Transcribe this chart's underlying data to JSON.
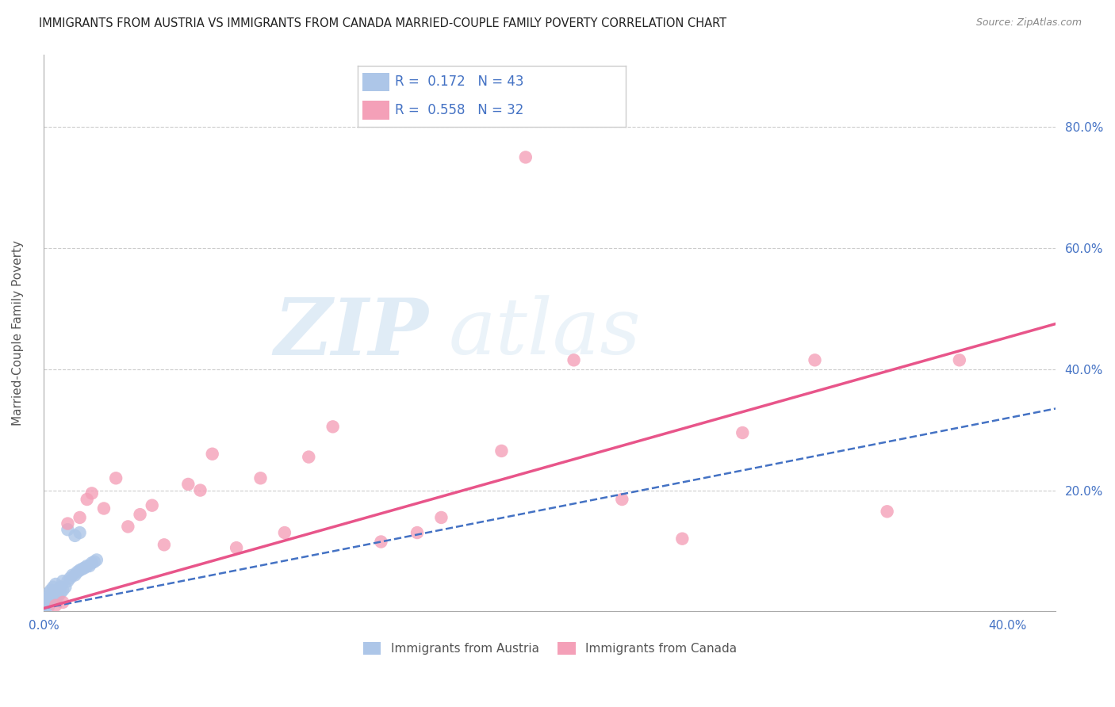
{
  "title": "IMMIGRANTS FROM AUSTRIA VS IMMIGRANTS FROM CANADA MARRIED-COUPLE FAMILY POVERTY CORRELATION CHART",
  "source": "Source: ZipAtlas.com",
  "ylabel": "Married-Couple Family Poverty",
  "xlim": [
    0.0,
    0.42
  ],
  "ylim": [
    0.0,
    0.92
  ],
  "xticks": [
    0.0,
    0.1,
    0.2,
    0.3,
    0.4
  ],
  "yticks": [
    0.0,
    0.2,
    0.4,
    0.6,
    0.8
  ],
  "ytick_labels_right": [
    "",
    "20.0%",
    "40.0%",
    "60.0%",
    "80.0%"
  ],
  "xtick_labels": [
    "0.0%",
    "",
    "",
    "",
    "40.0%"
  ],
  "austria_R": 0.172,
  "austria_N": 43,
  "canada_R": 0.558,
  "canada_N": 32,
  "austria_color": "#adc6e8",
  "canada_color": "#f4a0b8",
  "austria_line_color": "#4472c4",
  "canada_line_color": "#e8558a",
  "legend_label_austria": "Immigrants from Austria",
  "legend_label_canada": "Immigrants from Canada",
  "austria_x": [
    0.0005,
    0.001,
    0.001,
    0.001,
    0.001,
    0.001,
    0.002,
    0.002,
    0.002,
    0.002,
    0.002,
    0.003,
    0.003,
    0.003,
    0.004,
    0.004,
    0.004,
    0.005,
    0.005,
    0.005,
    0.006,
    0.006,
    0.007,
    0.007,
    0.008,
    0.008,
    0.009,
    0.01,
    0.011,
    0.012,
    0.013,
    0.014,
    0.015,
    0.016,
    0.017,
    0.018,
    0.019,
    0.02,
    0.021,
    0.022,
    0.015,
    0.013,
    0.01
  ],
  "austria_y": [
    0.005,
    0.008,
    0.01,
    0.012,
    0.015,
    0.02,
    0.008,
    0.012,
    0.018,
    0.025,
    0.03,
    0.015,
    0.02,
    0.035,
    0.018,
    0.025,
    0.04,
    0.02,
    0.03,
    0.045,
    0.025,
    0.035,
    0.03,
    0.04,
    0.035,
    0.05,
    0.04,
    0.05,
    0.055,
    0.06,
    0.06,
    0.065,
    0.068,
    0.07,
    0.072,
    0.075,
    0.075,
    0.08,
    0.082,
    0.085,
    0.13,
    0.125,
    0.135
  ],
  "canada_x": [
    0.005,
    0.008,
    0.01,
    0.015,
    0.018,
    0.02,
    0.025,
    0.03,
    0.035,
    0.04,
    0.045,
    0.05,
    0.06,
    0.065,
    0.07,
    0.08,
    0.09,
    0.1,
    0.11,
    0.12,
    0.14,
    0.155,
    0.165,
    0.19,
    0.22,
    0.24,
    0.265,
    0.29,
    0.32,
    0.35,
    0.38,
    0.2
  ],
  "canada_y": [
    0.01,
    0.015,
    0.145,
    0.155,
    0.185,
    0.195,
    0.17,
    0.22,
    0.14,
    0.16,
    0.175,
    0.11,
    0.21,
    0.2,
    0.26,
    0.105,
    0.22,
    0.13,
    0.255,
    0.305,
    0.115,
    0.13,
    0.155,
    0.265,
    0.415,
    0.185,
    0.12,
    0.295,
    0.415,
    0.165,
    0.415,
    0.75
  ],
  "austria_line_x": [
    0.0,
    0.42
  ],
  "austria_line_y": [
    0.005,
    0.335
  ],
  "canada_line_x": [
    0.0,
    0.42
  ],
  "canada_line_y": [
    0.005,
    0.475
  ]
}
